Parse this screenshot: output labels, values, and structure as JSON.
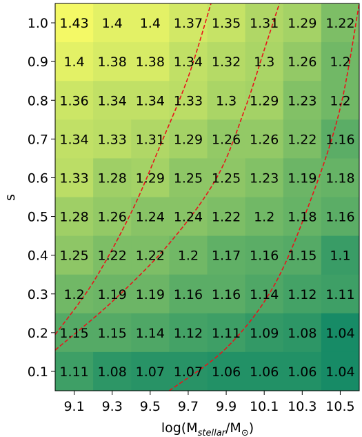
{
  "chart_data": {
    "type": "heatmap",
    "title": "",
    "xlabel": "log(M",
    "xlabel_sub1": "stellar",
    "xlabel_mid": "/M",
    "xlabel_sub2": "⊙",
    "xlabel_end": ")",
    "ylabel": "s",
    "x_categories": [
      "9.1",
      "9.3",
      "9.5",
      "9.7",
      "9.9",
      "10.1",
      "10.3",
      "10.5"
    ],
    "y_categories": [
      "1.0",
      "0.9",
      "0.8",
      "0.7",
      "0.6",
      "0.5",
      "0.4",
      "0.3",
      "0.2",
      "0.1"
    ],
    "values": [
      [
        1.43,
        1.4,
        1.4,
        1.37,
        1.35,
        1.31,
        1.29,
        1.22
      ],
      [
        1.4,
        1.38,
        1.38,
        1.34,
        1.32,
        1.3,
        1.26,
        1.2
      ],
      [
        1.36,
        1.34,
        1.34,
        1.33,
        1.3,
        1.29,
        1.23,
        1.2
      ],
      [
        1.34,
        1.33,
        1.31,
        1.29,
        1.26,
        1.26,
        1.22,
        1.16
      ],
      [
        1.33,
        1.28,
        1.29,
        1.25,
        1.25,
        1.23,
        1.19,
        1.18
      ],
      [
        1.28,
        1.26,
        1.24,
        1.24,
        1.22,
        1.2,
        1.18,
        1.16
      ],
      [
        1.25,
        1.22,
        1.22,
        1.2,
        1.17,
        1.16,
        1.15,
        1.1
      ],
      [
        1.2,
        1.19,
        1.19,
        1.16,
        1.16,
        1.14,
        1.12,
        1.11
      ],
      [
        1.15,
        1.15,
        1.14,
        1.12,
        1.11,
        1.09,
        1.08,
        1.04
      ],
      [
        1.11,
        1.08,
        1.07,
        1.07,
        1.06,
        1.06,
        1.06,
        1.04
      ]
    ],
    "colormap": "summer_r",
    "color_range": [
      1.0,
      1.45
    ],
    "contour_color": "#e8141b",
    "contours": [
      {
        "points": [
          [
            9.0,
            0.195
          ],
          [
            9.2,
            0.33
          ],
          [
            9.4,
            0.51
          ],
          [
            9.55,
            0.68
          ],
          [
            9.7,
            0.86
          ],
          [
            9.82,
            1.05
          ]
        ]
      },
      {
        "points": [
          [
            9.0,
            0.155
          ],
          [
            9.3,
            0.28
          ],
          [
            9.6,
            0.43
          ],
          [
            9.85,
            0.6
          ],
          [
            10.0,
            0.78
          ],
          [
            10.1,
            0.93
          ],
          [
            10.18,
            1.05
          ]
        ]
      },
      {
        "points": [
          [
            9.6,
            0.05
          ],
          [
            9.9,
            0.16
          ],
          [
            10.15,
            0.32
          ],
          [
            10.35,
            0.55
          ],
          [
            10.5,
            0.78
          ],
          [
            10.6,
            1.05
          ]
        ]
      }
    ]
  }
}
